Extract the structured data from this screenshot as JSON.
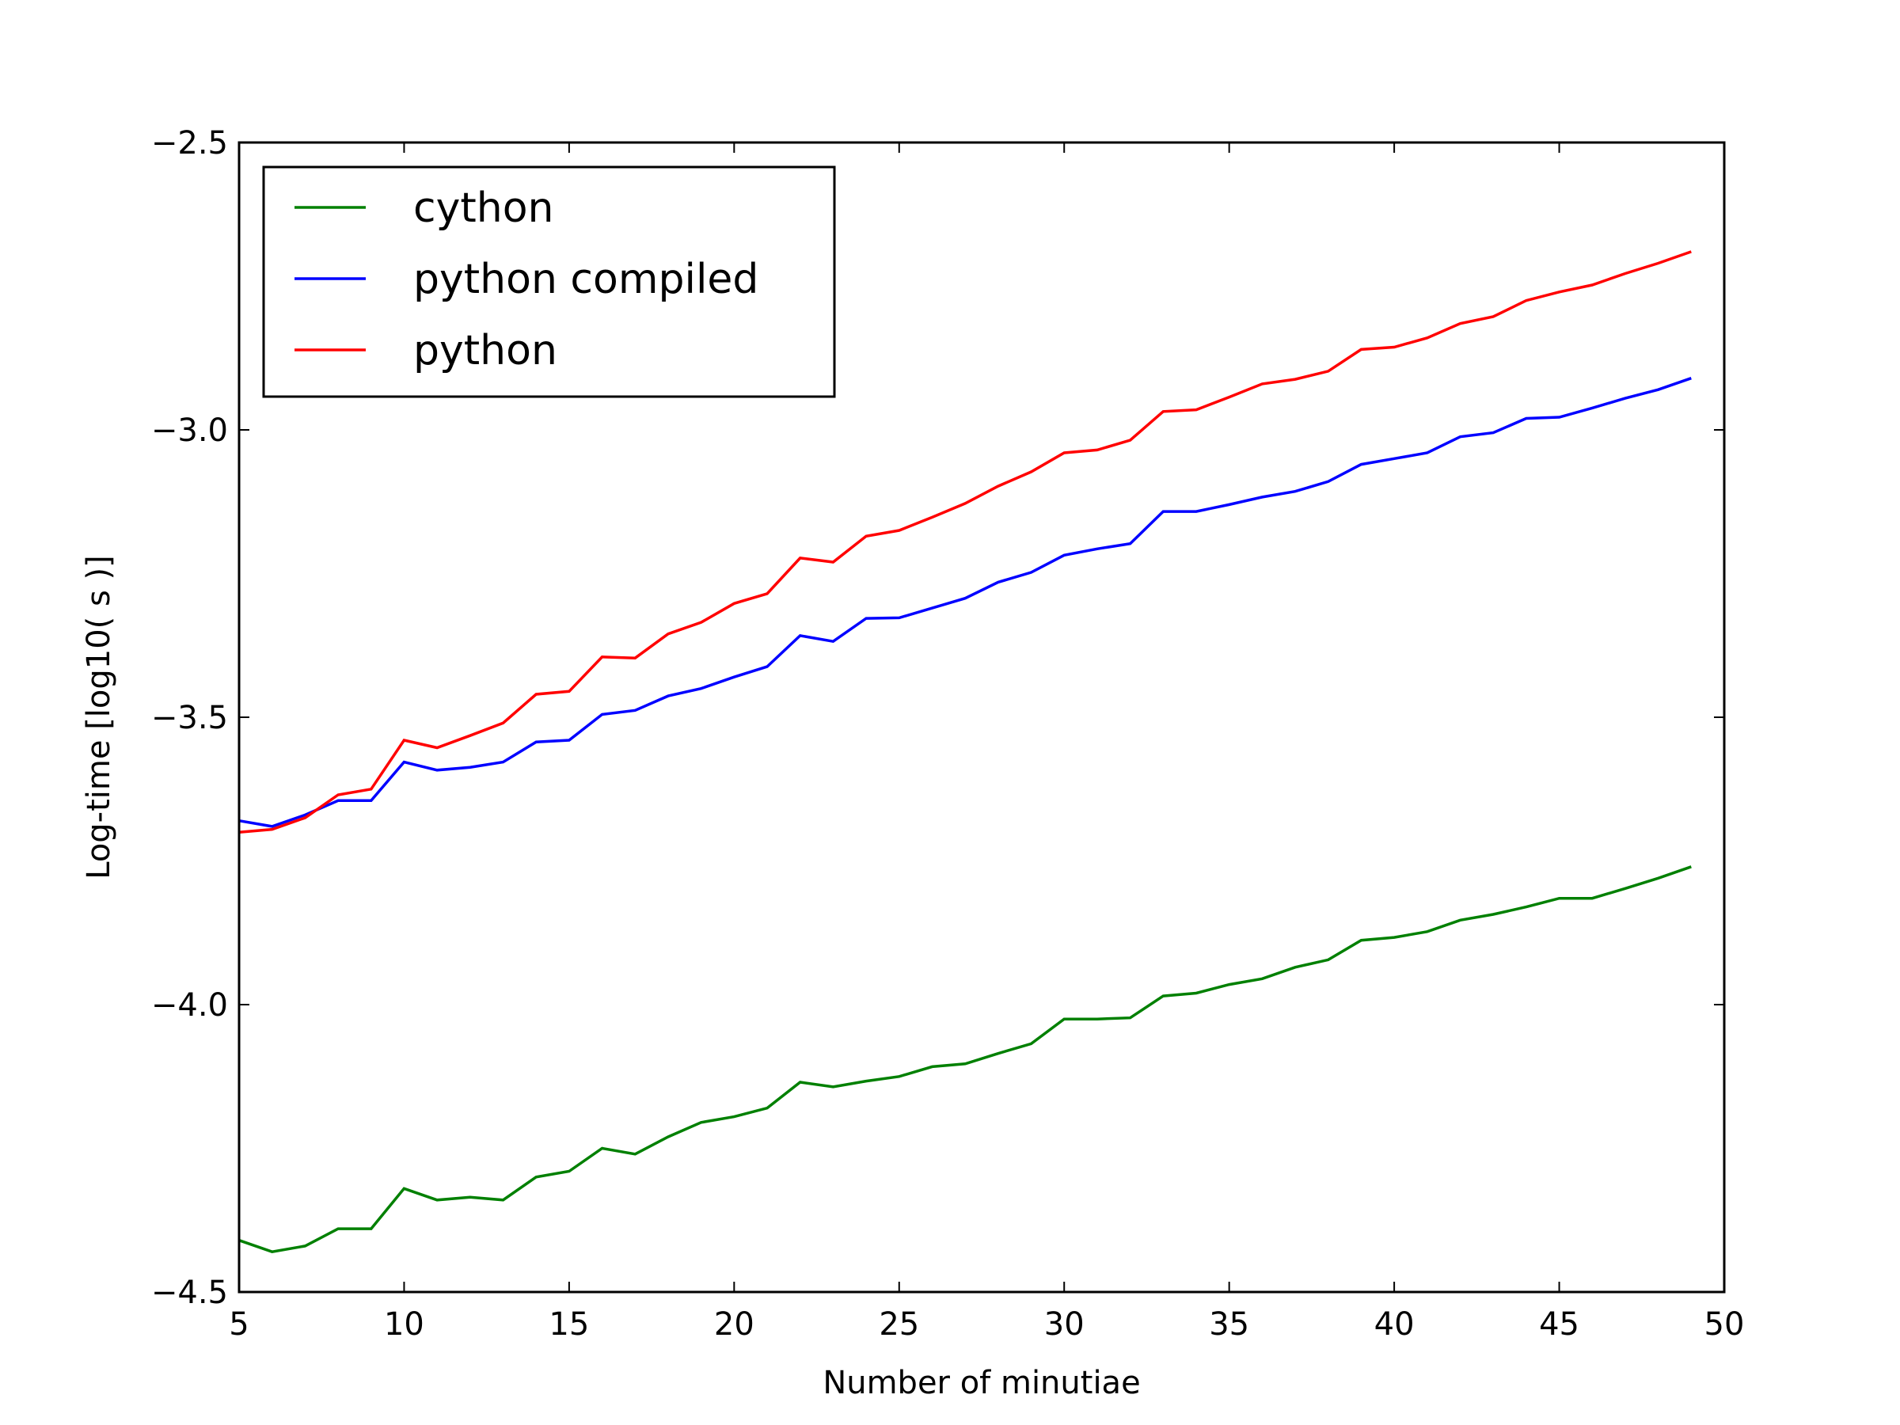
{
  "chart_data": {
    "type": "line",
    "title": "",
    "xlabel": "Number of minutiae",
    "ylabel": "Log-time [log10( s )]",
    "xlim": [
      5,
      50
    ],
    "ylim": [
      -4.5,
      -2.5
    ],
    "xticks": [
      5,
      10,
      15,
      20,
      25,
      30,
      35,
      40,
      45,
      50
    ],
    "xtick_labels": [
      "5",
      "10",
      "15",
      "20",
      "25",
      "30",
      "35",
      "40",
      "45",
      "50"
    ],
    "yticks": [
      -4.5,
      -4.0,
      -3.5,
      -3.0,
      -2.5
    ],
    "ytick_labels": [
      "−4.5",
      "−4.0",
      "−3.5",
      "−3.0",
      "−2.5"
    ],
    "grid": false,
    "legend_position": "top-left",
    "x": [
      5,
      6,
      7,
      8,
      9,
      10,
      11,
      12,
      13,
      14,
      15,
      16,
      17,
      18,
      19,
      20,
      21,
      22,
      23,
      24,
      25,
      26,
      27,
      28,
      29,
      30,
      31,
      32,
      33,
      34,
      35,
      36,
      37,
      38,
      39,
      40,
      41,
      42,
      43,
      44,
      45,
      46,
      47,
      48,
      49
    ],
    "series": [
      {
        "name": "cython",
        "color": "#008000",
        "values": [
          -4.41,
          -4.43,
          -4.42,
          -4.39,
          -4.39,
          -4.32,
          -4.34,
          -4.335,
          -4.34,
          -4.3,
          -4.29,
          -4.25,
          -4.26,
          -4.23,
          -4.205,
          -4.195,
          -4.18,
          -4.135,
          -4.143,
          -4.133,
          -4.125,
          -4.108,
          -4.103,
          -4.085,
          -4.068,
          -4.025,
          -4.025,
          -4.023,
          -3.985,
          -3.98,
          -3.965,
          -3.955,
          -3.935,
          -3.922,
          -3.888,
          -3.883,
          -3.873,
          -3.853,
          -3.843,
          -3.83,
          -3.815,
          -3.815,
          -3.798,
          -3.78,
          -3.76
        ]
      },
      {
        "name": "python compiled",
        "color": "#0000ff",
        "values": [
          -3.68,
          -3.69,
          -3.67,
          -3.645,
          -3.645,
          -3.578,
          -3.592,
          -3.587,
          -3.578,
          -3.543,
          -3.54,
          -3.495,
          -3.488,
          -3.463,
          -3.45,
          -3.43,
          -3.412,
          -3.358,
          -3.368,
          -3.328,
          -3.327,
          -3.31,
          -3.293,
          -3.265,
          -3.248,
          -3.218,
          -3.207,
          -3.198,
          -3.142,
          -3.142,
          -3.13,
          -3.117,
          -3.107,
          -3.09,
          -3.06,
          -3.05,
          -3.04,
          -3.012,
          -3.005,
          -2.98,
          -2.978,
          -2.962,
          -2.945,
          -2.93,
          -2.91
        ]
      },
      {
        "name": "python",
        "color": "#ff0000",
        "values": [
          -3.7,
          -3.695,
          -3.675,
          -3.635,
          -3.625,
          -3.54,
          -3.553,
          -3.532,
          -3.51,
          -3.46,
          -3.455,
          -3.395,
          -3.397,
          -3.355,
          -3.335,
          -3.302,
          -3.285,
          -3.223,
          -3.23,
          -3.185,
          -3.175,
          -3.152,
          -3.128,
          -3.098,
          -3.073,
          -3.04,
          -3.035,
          -3.018,
          -2.968,
          -2.965,
          -2.943,
          -2.92,
          -2.912,
          -2.898,
          -2.86,
          -2.856,
          -2.84,
          -2.815,
          -2.803,
          -2.775,
          -2.76,
          -2.748,
          -2.728,
          -2.71,
          -2.69
        ]
      }
    ]
  }
}
